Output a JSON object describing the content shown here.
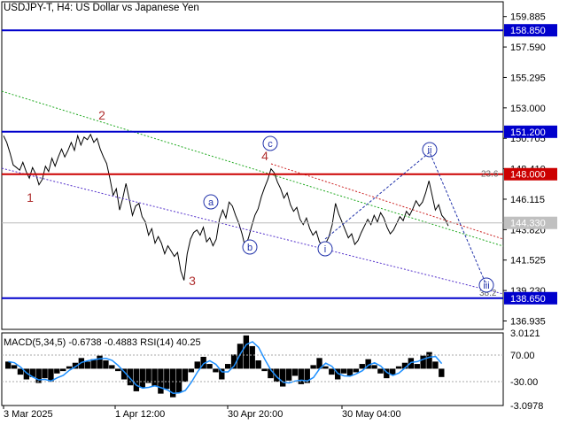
{
  "header": {
    "symbol": "USDJPY-T, H4:",
    "description": "US Dollar vs Japanese Yen"
  },
  "indicator": {
    "label": "MACD(5,34,5) -0.6738 -0.4883 RSI(14) 40.25"
  },
  "colors": {
    "price": "#000000",
    "support_resistance": "#0000cc",
    "current_level": "#cc0000",
    "wave_major": "#b03030",
    "wave_minor": "#2233aa",
    "channel_green": "#22aa22",
    "channel_purple": "#5533cc",
    "channel_red": "#cc2222",
    "macd_hist": "#000000",
    "macd_signal": "#1e90ff"
  },
  "chart_data": [
    {
      "type": "line",
      "title": "",
      "ylim": [
        136.3,
        161.0
      ],
      "x_ticks": [
        "3 Mar 2025",
        "1 Apr 12:00",
        "30 Apr 20:00",
        "30 May 04:00"
      ],
      "y_ticks": [
        "159.885",
        "157.590",
        "155.295",
        "153.000",
        "150.705",
        "148.410",
        "146.115",
        "143.820",
        "141.525",
        "139.230",
        "136.935"
      ],
      "series": [
        {
          "values": [
            150.9,
            150.4,
            149.6,
            148.7,
            148.5,
            148.3,
            148.9,
            148.2,
            147.7,
            148.5,
            148.0,
            147.2,
            147.6,
            148.6,
            148.2,
            149.2,
            148.6,
            149.3,
            149.9,
            149.3,
            149.8,
            150.4,
            149.8,
            150.9,
            150.2,
            150.8,
            150.6,
            151.0,
            150.4,
            150.7,
            149.9,
            149.3,
            148.8,
            147.7,
            146.4,
            146.9,
            145.3,
            146.2,
            147.3,
            146.1,
            144.9,
            145.6,
            145.8,
            144.8,
            144.4,
            143.4,
            143.9,
            142.8,
            143.3,
            142.8,
            142.0,
            142.6,
            142.2,
            141.8,
            142.1,
            140.7,
            140.0,
            142.0,
            143.1,
            143.6,
            143.8,
            143.4,
            144.0,
            142.9,
            143.2,
            142.6,
            143.1,
            144.6,
            145.3,
            144.7,
            145.9,
            145.6,
            144.9,
            144.3,
            143.5,
            142.5,
            143.2,
            144.1,
            144.9,
            145.4,
            146.3,
            147.0,
            147.6,
            148.4,
            148.1,
            147.4,
            146.9,
            146.2,
            146.6,
            145.7,
            145.2,
            145.5,
            144.6,
            144.2,
            144.7,
            143.9,
            143.4,
            143.7,
            142.9,
            142.6,
            142.8,
            143.3,
            144.2,
            145.8,
            145.0,
            144.4,
            143.8,
            143.2,
            143.5,
            142.7,
            143.0,
            143.6,
            144.1,
            144.6,
            144.2,
            144.9,
            144.4,
            145.1,
            144.7,
            144.0,
            143.5,
            143.8,
            144.3,
            144.8,
            144.5,
            145.2,
            144.9,
            145.4,
            146.0,
            145.6,
            145.9,
            146.6,
            147.5,
            146.4,
            145.3,
            145.7,
            144.9,
            144.6,
            144.1
          ]
        }
      ],
      "horizontal_levels": [
        {
          "label": "158.850",
          "value": 158.85
        },
        {
          "label": "151.200",
          "value": 151.2
        },
        {
          "label": "148.000",
          "value": 148.0
        },
        {
          "label": "138.650",
          "value": 138.65
        }
      ],
      "current_price_label": "144.330",
      "fib_labels": [
        "23.6",
        "38.2"
      ],
      "wave_labels_major": [
        "1",
        "2",
        "3",
        "4"
      ],
      "wave_labels_minor": [
        "a",
        "b",
        "c",
        "i",
        "ii",
        "iii"
      ]
    },
    {
      "type": "bar",
      "title": "MACD(5,34,5) -0.6738 -0.4883 RSI(14) 40.25",
      "ylim": [
        -3.0978,
        3.0121
      ],
      "y_ticks": [
        "3.0121",
        "70.00",
        "-30.00",
        "-3.0978"
      ],
      "series": [
        {
          "name": "MACD",
          "values": [
            0.6,
            0.3,
            -0.5,
            -0.9,
            -0.7,
            -1.2,
            -0.8,
            -1.1,
            -0.4,
            -0.2,
            0.2,
            0.5,
            0.9,
            0.6,
            0.8,
            1.1,
            0.7,
            0.3,
            -0.2,
            -0.9,
            -1.4,
            -1.9,
            -1.6,
            -1.2,
            -1.5,
            -2.1,
            -1.7,
            -2.4,
            -2.0,
            -1.1,
            -0.3,
            0.6,
            1.0,
            0.4,
            -0.3,
            -0.9,
            0.4,
            1.2,
            2.1,
            2.8,
            1.9,
            0.7,
            -0.2,
            -0.8,
            -1.1,
            -1.5,
            -1.0,
            -0.6,
            -1.3,
            -1.2,
            0.3,
            0.9,
            0.2,
            -0.5,
            -0.9,
            -0.4,
            -0.6,
            -0.3,
            0.4,
            0.8,
            0.3,
            -0.4,
            -0.8,
            -0.5,
            0.2,
            0.5,
            0.9,
            0.4,
            1.1,
            1.4,
            0.6,
            -0.7
          ]
        }
      ]
    }
  ]
}
